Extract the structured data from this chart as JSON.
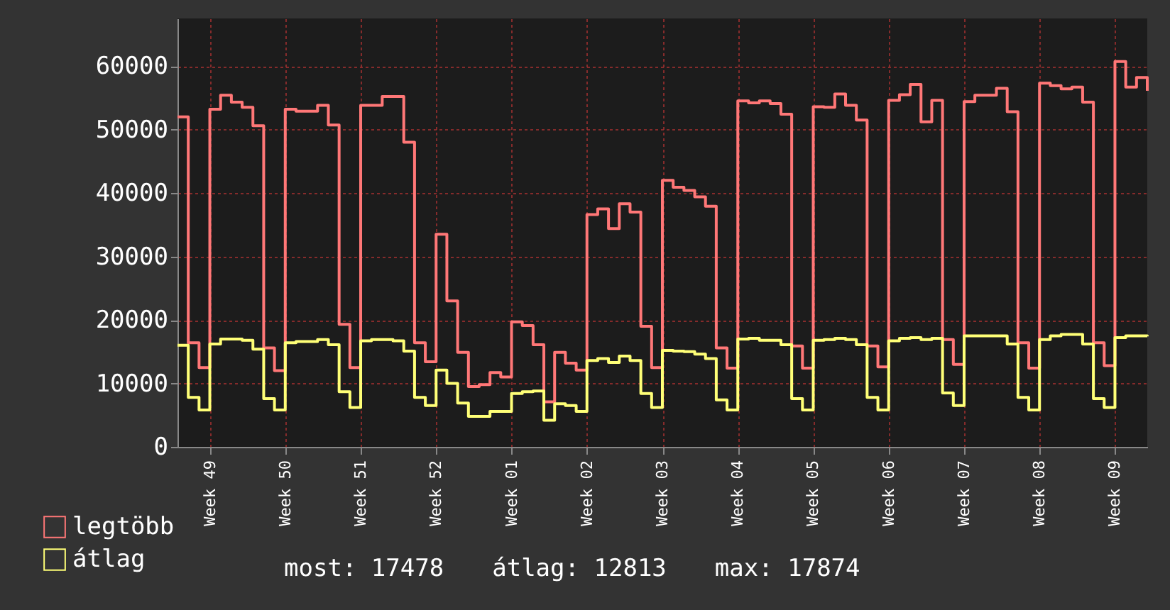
{
  "chart_data": {
    "type": "step",
    "categories": [
      null,
      null,
      null,
      "Week 49",
      null,
      null,
      null,
      null,
      null,
      null,
      "Week 50",
      null,
      null,
      null,
      null,
      null,
      null,
      "Week 51",
      null,
      null,
      null,
      null,
      null,
      null,
      "Week 52",
      null,
      null,
      null,
      null,
      null,
      null,
      "Week 01",
      null,
      null,
      null,
      null,
      null,
      null,
      "Week 02",
      null,
      null,
      null,
      null,
      null,
      null,
      "Week 03",
      null,
      null,
      null,
      null,
      null,
      null,
      "Week 04",
      null,
      null,
      null,
      null,
      null,
      null,
      "Week 05",
      null,
      null,
      null,
      null,
      null,
      null,
      "Week 06",
      null,
      null,
      null,
      null,
      null,
      null,
      "Week 07",
      null,
      null,
      null,
      null,
      null,
      null,
      "Week 08",
      null,
      null,
      null,
      null,
      null,
      null,
      "Week 09",
      null,
      null,
      null
    ],
    "ylim": [
      0,
      67500
    ],
    "yticks": [
      0,
      10000,
      20000,
      30000,
      40000,
      50000,
      60000
    ],
    "grid": true,
    "legend": "bottom left",
    "line_style": "solid",
    "annotations": [
      "most: 17478",
      "átlag: 12813",
      "max: 17874"
    ],
    "series": [
      {
        "name": "legtöbb",
        "color": "#ff7777",
        "values": [
          52000,
          16400,
          12500,
          53200,
          55400,
          54300,
          53500,
          50600,
          15600,
          12000,
          53200,
          52900,
          52900,
          53800,
          50700,
          19300,
          12500,
          53800,
          53800,
          55200,
          55200,
          48000,
          16400,
          13400,
          33500,
          23000,
          14900,
          9500,
          9800,
          11700,
          11000,
          19700,
          19100,
          16100,
          7100,
          14900,
          13200,
          12100,
          36600,
          37500,
          34400,
          38300,
          37000,
          19000,
          12500,
          42000,
          40900,
          40400,
          39400,
          37900,
          15600,
          12400,
          54500,
          54200,
          54500,
          54100,
          52400,
          15900,
          12400,
          53600,
          53500,
          55600,
          53800,
          51500,
          15900,
          12600,
          54600,
          55500,
          57100,
          51200,
          54600,
          16900,
          13000,
          54400,
          55400,
          55400,
          56500,
          52800,
          16400,
          12400,
          57300,
          56900,
          56400,
          56700,
          54300,
          16400,
          12800,
          60700,
          56700,
          58200,
          56100
        ]
      },
      {
        "name": "átlag",
        "color": "#ffff77",
        "values": [
          16000,
          7800,
          5800,
          16200,
          17000,
          17000,
          16800,
          15400,
          7600,
          5800,
          16400,
          16600,
          16600,
          16900,
          16100,
          8700,
          6200,
          16700,
          16900,
          16900,
          16700,
          15100,
          7800,
          6500,
          12100,
          10000,
          6900,
          4800,
          4800,
          5600,
          5600,
          8400,
          8700,
          8800,
          4200,
          6800,
          6500,
          5600,
          13600,
          13900,
          13300,
          14300,
          13600,
          8400,
          6200,
          15200,
          15100,
          15000,
          14600,
          13900,
          7400,
          5800,
          17000,
          17100,
          16800,
          16800,
          16100,
          7600,
          5800,
          16800,
          16900,
          17100,
          16900,
          16100,
          7800,
          5800,
          16700,
          17100,
          17200,
          16900,
          17100,
          8500,
          6500,
          17500,
          17500,
          17500,
          17500,
          16200,
          7800,
          5800,
          16900,
          17500,
          17700,
          17700,
          16200,
          7600,
          6200,
          17200,
          17500,
          17500,
          17400
        ]
      }
    ]
  }
}
